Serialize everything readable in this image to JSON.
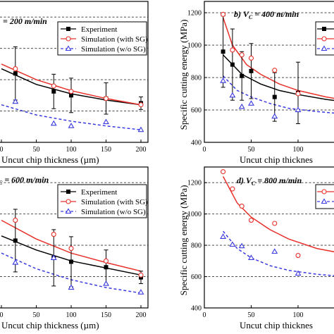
{
  "chart_data": [
    {
      "type": "line",
      "title": "= 200 m/min",
      "xlabel": "Uncut chip thickness (µm)",
      "ylabel": "",
      "x_ticks": [
        "0",
        "50",
        "100",
        "150",
        "200"
      ],
      "y_ticks": [],
      "xlim": [
        0,
        210
      ],
      "ylim": [
        400,
        1300
      ],
      "grid_y": [
        600,
        800,
        1000,
        1200
      ],
      "legend_position": "top-right",
      "series": [
        {
          "name": "Experiment",
          "kind": "experiment",
          "color": "#000000",
          "marker": "square",
          "points": [
            [
              20,
              840
            ],
            [
              75,
              725
            ],
            [
              100,
              700
            ],
            [
              150,
              680
            ],
            [
              200,
              650
            ]
          ],
          "err": [
            170,
            110,
            110,
            100,
            40
          ]
        },
        {
          "name": "Simulation (with SG)",
          "kind": "sim-sg",
          "color": "#e8302a",
          "marker": "circle",
          "points": [
            [
              20,
              870
            ],
            [
              75,
              760
            ],
            [
              100,
              725
            ],
            [
              150,
              680
            ],
            [
              200,
              640
            ]
          ]
        },
        {
          "name": "Simulation (w/o SG)",
          "kind": "sim-nosg",
          "color": "#3a3ae0",
          "marker": "triangle",
          "points": [
            [
              20,
              660
            ],
            [
              75,
              520
            ],
            [
              100,
              505
            ],
            [
              150,
              530
            ],
            [
              200,
              480
            ]
          ]
        }
      ],
      "curves": [
        {
          "kind": "experiment",
          "color": "#000000",
          "points": [
            [
              0,
              870
            ],
            [
              50,
              770
            ],
            [
              100,
              710
            ],
            [
              150,
              670
            ],
            [
              200,
              640
            ]
          ]
        },
        {
          "kind": "sim-sg",
          "color": "#e8302a",
          "points": [
            [
              0,
              900
            ],
            [
              50,
              800
            ],
            [
              100,
              730
            ],
            [
              150,
              680
            ],
            [
              200,
              640
            ]
          ]
        },
        {
          "kind": "sim-nosg",
          "color": "#3a3ae0",
          "points": [
            [
              0,
              640
            ],
            [
              50,
              575
            ],
            [
              100,
              535
            ],
            [
              150,
              505
            ],
            [
              200,
              480
            ]
          ]
        }
      ]
    },
    {
      "type": "line",
      "title": "b) V",
      "title_sub": "C",
      "title_rest": " = 400 m/min",
      "xlabel": "Uncut chip thicknes",
      "ylabel": "Specific cutting energy (MPa)",
      "x_ticks": [
        "0",
        "50",
        "100"
      ],
      "y_ticks": [
        "400",
        "600",
        "800",
        "1000",
        "1200"
      ],
      "xlim": [
        0,
        160
      ],
      "ylim": [
        400,
        1270
      ],
      "grid_y": [
        600,
        800,
        1000,
        1200
      ],
      "legend_position": "top-right",
      "series": [
        {
          "name": "",
          "kind": "experiment",
          "color": "#000000",
          "marker": "square",
          "points": [
            [
              20,
              960
            ],
            [
              30,
              880
            ],
            [
              40,
              810
            ],
            [
              50,
              840
            ],
            [
              75,
              680
            ],
            [
              100,
              705
            ]
          ],
          "err": [
            220,
            220,
            150,
            170,
            150,
            190
          ]
        },
        {
          "name": "",
          "kind": "sim-sg",
          "color": "#e8302a",
          "marker": "circle",
          "points": [
            [
              20,
              1190
            ],
            [
              30,
              970
            ],
            [
              40,
              940
            ],
            [
              50,
              920
            ],
            [
              75,
              845
            ],
            [
              100,
              700
            ]
          ]
        },
        {
          "name": "",
          "kind": "sim-nosg",
          "color": "#3a3ae0",
          "marker": "triangle",
          "points": [
            [
              20,
              780
            ],
            [
              30,
              690
            ],
            [
              40,
              620
            ],
            [
              50,
              640
            ],
            [
              75,
              560
            ],
            [
              100,
              600
            ]
          ]
        }
      ],
      "curves": [
        {
          "kind": "experiment",
          "color": "#000000",
          "points": [
            [
              20,
              940
            ],
            [
              40,
              820
            ],
            [
              60,
              760
            ],
            [
              80,
              720
            ],
            [
              100,
              695
            ],
            [
              130,
              665
            ],
            [
              150,
              650
            ]
          ]
        },
        {
          "kind": "sim-sg",
          "color": "#e8302a",
          "points": [
            [
              20,
              1170
            ],
            [
              30,
              1000
            ],
            [
              45,
              880
            ],
            [
              60,
              820
            ],
            [
              80,
              760
            ],
            [
              100,
              720
            ],
            [
              130,
              680
            ],
            [
              150,
              660
            ]
          ]
        },
        {
          "kind": "sim-nosg",
          "color": "#3a3ae0",
          "points": [
            [
              20,
              810
            ],
            [
              35,
              720
            ],
            [
              50,
              680
            ],
            [
              70,
              640
            ],
            [
              90,
              610
            ],
            [
              120,
              590
            ],
            [
              150,
              575
            ]
          ]
        }
      ]
    },
    {
      "type": "line",
      "title": "",
      "title_sub": "C",
      "title_rest": " = 600 m/min",
      "xlabel": "Uncut chip thickness (µm)",
      "ylabel": "",
      "x_ticks": [
        "0",
        "50",
        "100",
        "150",
        "200"
      ],
      "y_ticks": [],
      "xlim": [
        0,
        210
      ],
      "ylim": [
        400,
        1300
      ],
      "grid_y": [
        600,
        800,
        1000,
        1200
      ],
      "legend_position": "top-right",
      "series": [
        {
          "name": "Experiment",
          "kind": "experiment",
          "color": "#000000",
          "marker": "square",
          "points": [
            [
              20,
              830
            ],
            [
              75,
              720
            ],
            [
              100,
              695
            ],
            [
              150,
              660
            ],
            [
              200,
              595
            ]
          ],
          "err": [
            200,
            180,
            160,
            110,
            40
          ]
        },
        {
          "name": "Simulation (with SG)",
          "kind": "sim-sg",
          "color": "#e8302a",
          "marker": "circle",
          "points": [
            [
              20,
              960
            ],
            [
              75,
              870
            ],
            [
              100,
              780
            ],
            [
              150,
              700
            ],
            [
              200,
              610
            ]
          ]
        },
        {
          "name": "Simulation (w/o SG)",
          "kind": "sim-nosg",
          "color": "#3a3ae0",
          "marker": "triangle",
          "points": [
            [
              20,
              690
            ],
            [
              75,
              720
            ],
            [
              100,
              530
            ],
            [
              150,
              555
            ],
            [
              200,
              500
            ]
          ]
        }
      ],
      "curves": [
        {
          "kind": "experiment",
          "color": "#000000",
          "points": [
            [
              0,
              860
            ],
            [
              50,
              770
            ],
            [
              100,
              700
            ],
            [
              150,
              655
            ],
            [
              200,
              610
            ]
          ]
        },
        {
          "kind": "sim-sg",
          "color": "#e8302a",
          "points": [
            [
              0,
              960
            ],
            [
              50,
              840
            ],
            [
              100,
              750
            ],
            [
              150,
              690
            ],
            [
              200,
              635
            ]
          ]
        },
        {
          "kind": "sim-nosg",
          "color": "#3a3ae0",
          "points": [
            [
              0,
              750
            ],
            [
              50,
              650
            ],
            [
              100,
              580
            ],
            [
              150,
              530
            ],
            [
              200,
              495
            ]
          ]
        }
      ]
    },
    {
      "type": "line",
      "title": "d) V",
      "title_sub": "C",
      "title_rest": " = 800 m/min",
      "xlabel": "Uncut chip thicknes",
      "ylabel": "Specific cutting energy (MPa)",
      "x_ticks": [
        "0",
        "50",
        "100"
      ],
      "y_ticks": [
        "400",
        "600",
        "800",
        "1000",
        "1200"
      ],
      "xlim": [
        0,
        160
      ],
      "ylim": [
        400,
        1300
      ],
      "grid_y": [
        600,
        800,
        1000,
        1200
      ],
      "legend_position": "top-right",
      "series": [
        {
          "name": "",
          "kind": "sim-sg",
          "color": "#e8302a",
          "marker": "circle",
          "points": [
            [
              20,
              1270
            ],
            [
              30,
              1160
            ],
            [
              40,
              1050
            ],
            [
              50,
              960
            ],
            [
              75,
              940
            ],
            [
              100,
              735
            ]
          ]
        },
        {
          "name": "",
          "kind": "sim-nosg",
          "color": "#3a3ae0",
          "marker": "triangle",
          "points": [
            [
              20,
              855
            ],
            [
              30,
              805
            ],
            [
              40,
              795
            ],
            [
              50,
              720
            ],
            [
              75,
              760
            ],
            [
              100,
              620
            ]
          ]
        }
      ],
      "curves": [
        {
          "kind": "sim-sg",
          "color": "#e8302a",
          "points": [
            [
              20,
              1240
            ],
            [
              35,
              1070
            ],
            [
              50,
              980
            ],
            [
              70,
              900
            ],
            [
              90,
              840
            ],
            [
              120,
              780
            ],
            [
              150,
              745
            ]
          ]
        },
        {
          "kind": "sim-nosg",
          "color": "#3a3ae0",
          "points": [
            [
              20,
              890
            ],
            [
              35,
              780
            ],
            [
              50,
              720
            ],
            [
              70,
              670
            ],
            [
              90,
              640
            ],
            [
              120,
              615
            ],
            [
              150,
              600
            ]
          ]
        }
      ]
    }
  ]
}
